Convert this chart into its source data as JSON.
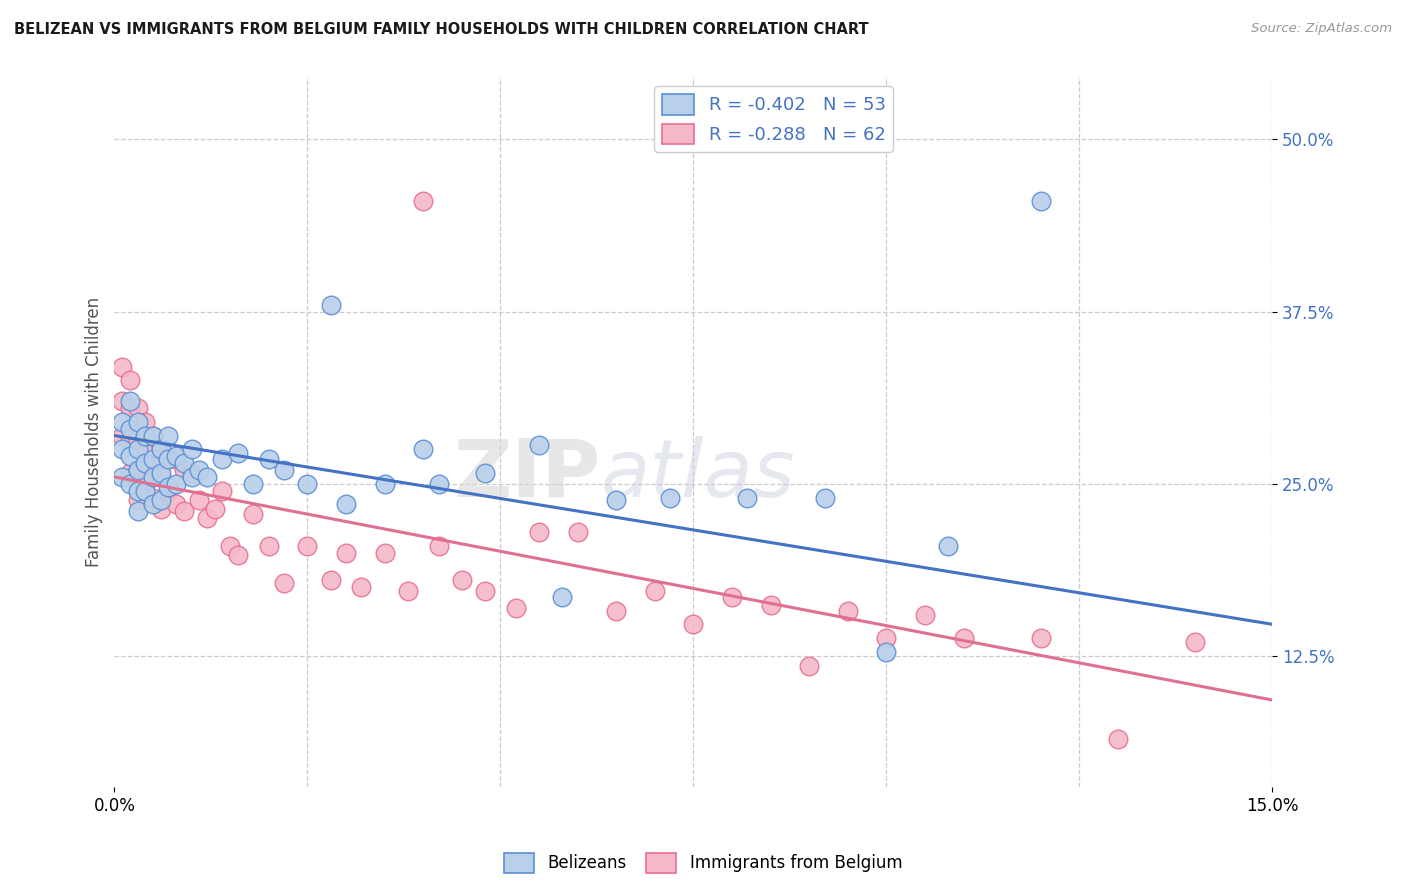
{
  "title": "BELIZEAN VS IMMIGRANTS FROM BELGIUM FAMILY HOUSEHOLDS WITH CHILDREN CORRELATION CHART",
  "source": "Source: ZipAtlas.com",
  "ylabel": "Family Households with Children",
  "xmin": 0.0,
  "xmax": 0.15,
  "ymin": 0.03,
  "ymax": 0.545,
  "yticks": [
    0.125,
    0.25,
    0.375,
    0.5
  ],
  "ytick_labels": [
    "12.5%",
    "25.0%",
    "37.5%",
    "50.0%"
  ],
  "watermark_zip": "ZIP",
  "watermark_atlas": "atlas",
  "legend_r1": "R = -0.402",
  "legend_n1": "N = 53",
  "legend_r2": "R = -0.288",
  "legend_n2": "N = 62",
  "color_blue_fill": "#b8d0ea",
  "color_pink_fill": "#f5b8c8",
  "color_blue_edge": "#5b8fd4",
  "color_pink_edge": "#e87090",
  "color_blue_line": "#4472c4",
  "color_pink_line": "#e07090",
  "blue_line_x0": 0.0,
  "blue_line_y0": 0.285,
  "blue_line_x1": 0.15,
  "blue_line_y1": 0.148,
  "pink_line_x0": 0.0,
  "pink_line_y0": 0.255,
  "pink_line_x1": 0.15,
  "pink_line_y1": 0.093,
  "blue_x": [
    0.001,
    0.001,
    0.001,
    0.002,
    0.002,
    0.002,
    0.002,
    0.003,
    0.003,
    0.003,
    0.003,
    0.003,
    0.004,
    0.004,
    0.004,
    0.005,
    0.005,
    0.005,
    0.005,
    0.006,
    0.006,
    0.006,
    0.007,
    0.007,
    0.007,
    0.008,
    0.008,
    0.009,
    0.01,
    0.01,
    0.011,
    0.012,
    0.014,
    0.016,
    0.018,
    0.02,
    0.022,
    0.025,
    0.028,
    0.03,
    0.035,
    0.04,
    0.042,
    0.048,
    0.055,
    0.058,
    0.065,
    0.072,
    0.082,
    0.092,
    0.1,
    0.108,
    0.12
  ],
  "blue_y": [
    0.295,
    0.275,
    0.255,
    0.31,
    0.29,
    0.27,
    0.25,
    0.295,
    0.275,
    0.26,
    0.245,
    0.23,
    0.285,
    0.265,
    0.245,
    0.285,
    0.268,
    0.255,
    0.235,
    0.275,
    0.258,
    0.238,
    0.285,
    0.268,
    0.248,
    0.27,
    0.25,
    0.265,
    0.275,
    0.255,
    0.26,
    0.255,
    0.268,
    0.272,
    0.25,
    0.268,
    0.26,
    0.25,
    0.38,
    0.235,
    0.25,
    0.275,
    0.25,
    0.258,
    0.278,
    0.168,
    0.238,
    0.24,
    0.24,
    0.24,
    0.128,
    0.205,
    0.455
  ],
  "pink_x": [
    0.001,
    0.001,
    0.001,
    0.002,
    0.002,
    0.002,
    0.002,
    0.003,
    0.003,
    0.003,
    0.003,
    0.004,
    0.004,
    0.004,
    0.005,
    0.005,
    0.005,
    0.006,
    0.006,
    0.006,
    0.007,
    0.007,
    0.008,
    0.008,
    0.009,
    0.009,
    0.01,
    0.011,
    0.012,
    0.013,
    0.014,
    0.015,
    0.016,
    0.018,
    0.02,
    0.022,
    0.025,
    0.028,
    0.03,
    0.032,
    0.035,
    0.038,
    0.04,
    0.042,
    0.045,
    0.048,
    0.052,
    0.055,
    0.06,
    0.065,
    0.07,
    0.075,
    0.08,
    0.085,
    0.09,
    0.095,
    0.1,
    0.105,
    0.11,
    0.12,
    0.13,
    0.14
  ],
  "pink_y": [
    0.335,
    0.31,
    0.285,
    0.325,
    0.305,
    0.282,
    0.258,
    0.305,
    0.282,
    0.26,
    0.238,
    0.295,
    0.272,
    0.25,
    0.285,
    0.262,
    0.24,
    0.275,
    0.255,
    0.232,
    0.268,
    0.245,
    0.268,
    0.235,
    0.26,
    0.23,
    0.258,
    0.238,
    0.225,
    0.232,
    0.245,
    0.205,
    0.198,
    0.228,
    0.205,
    0.178,
    0.205,
    0.18,
    0.2,
    0.175,
    0.2,
    0.172,
    0.455,
    0.205,
    0.18,
    0.172,
    0.16,
    0.215,
    0.215,
    0.158,
    0.172,
    0.148,
    0.168,
    0.162,
    0.118,
    0.158,
    0.138,
    0.155,
    0.138,
    0.138,
    0.065,
    0.135
  ]
}
